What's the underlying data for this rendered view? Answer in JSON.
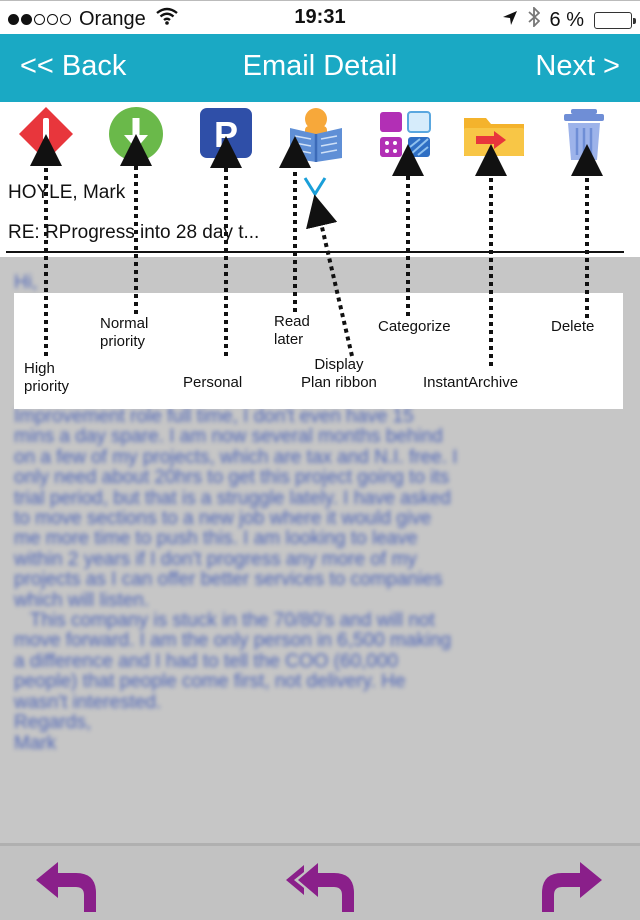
{
  "status_bar": {
    "carrier": "Orange",
    "time": "19:31",
    "battery": "6 %",
    "battery_level": 0.06
  },
  "nav": {
    "back_label": "<< Back",
    "title": "Email Detail",
    "next_label": "Next >"
  },
  "toolbar_icons": [
    "high-priority-icon",
    "normal-priority-icon",
    "personal-icon",
    "read-later-icon",
    "categorize-icon",
    "instant-archive-icon",
    "delete-icon"
  ],
  "email": {
    "sender": "HOYLE, Mark",
    "subject": "RE: RProgress into 28 day t...",
    "body_top": "Hi,",
    "body": "Improvement role full time, I don't even have 15\nmins a day spare. I am now several months behind\non a few of my projects, which are tax and N.I. free. I\nonly need about 20hrs to get this project going to its\ntrial period, but that is a struggle lately. I have asked\nto move sections to a new job where it would give\nme more time to push this. I am looking to leave\nwithin 2 years if I don't progress any more of my\nprojects as I can offer better services to companies\nwhich will listen.\n   This company is stuck in the 70/80's and will not\nmove forward. I am the only person in 6,500 making\na difference and I had to tell the COO (60,000\npeople) that people come first, not delivery. He\nwasn't interested.\nRegards,\nMark"
  },
  "legend": {
    "high_priority": "High\npriority",
    "normal_priority": "Normal\npriority",
    "personal": "Personal",
    "read_later": "Read\nlater",
    "display_plan_ribbon": "Display\nPlan ribbon",
    "categorize": "Categorize",
    "instant_archive": "InstantArchive",
    "delete": "Delete"
  },
  "colors": {
    "nav_bar": "#1aa9c4",
    "high_priority": "#e8363c",
    "normal_priority": "#6ab94a",
    "personal": "#2f4fa8",
    "bottom_actions": "#8a1f8a"
  }
}
